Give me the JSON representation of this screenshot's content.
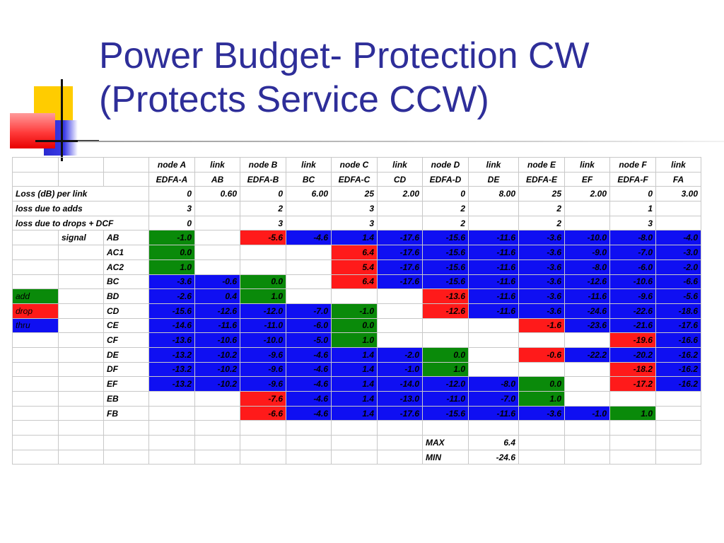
{
  "title": {
    "line1": "Power Budget- Protection CW",
    "line2": "(Protects Service CCW)"
  },
  "colors": {
    "title": "#2e2e99",
    "green": "#0a8a0a",
    "red": "#ff1a1a",
    "blue": "#0f0ff2",
    "logo_yellow": "#ffcc00",
    "logo_red": "#ff3b3b",
    "logo_blue": "#2a2ad0"
  },
  "header1": [
    "node A",
    "link",
    "node B",
    "link",
    "node C",
    "link",
    "node D",
    "link",
    "node E",
    "link",
    "node F",
    "link"
  ],
  "header2": [
    "EDFA-A",
    "AB",
    "EDFA-B",
    "BC",
    "EDFA-C",
    "CD",
    "EDFA-D",
    "DE",
    "EDFA-E",
    "EF",
    "EDFA-F",
    "FA"
  ],
  "params": [
    {
      "label": "Loss (dB) per link",
      "values": [
        "0",
        "0.60",
        "0",
        "6.00",
        "25",
        "2.00",
        "0",
        "8.00",
        "25",
        "2.00",
        "0",
        "3.00"
      ]
    },
    {
      "label": "loss due to adds",
      "values": [
        "3",
        "",
        "2",
        "",
        "3",
        "",
        "2",
        "",
        "2",
        "",
        "1",
        ""
      ]
    },
    {
      "label": "loss due to drops + DCF",
      "values": [
        "0",
        "",
        "3",
        "",
        "3",
        "",
        "2",
        "",
        "2",
        "",
        "3",
        ""
      ]
    }
  ],
  "signal_label": "signal",
  "legend": [
    {
      "label": "add",
      "color": "green"
    },
    {
      "label": "drop",
      "color": "red"
    },
    {
      "label": "thru",
      "color": "blue"
    }
  ],
  "signals": [
    {
      "label": "AB",
      "cells": [
        [
          "-1.0",
          "g"
        ],
        [
          "",
          ""
        ],
        [
          "-5.6",
          "r"
        ],
        [
          "-4.6",
          "b"
        ],
        [
          "1.4",
          "b"
        ],
        [
          "-17.6",
          "b"
        ],
        [
          "-15.6",
          "b"
        ],
        [
          "-11.6",
          "b"
        ],
        [
          "-3.6",
          "b"
        ],
        [
          "-10.0",
          "b"
        ],
        [
          "-8.0",
          "b"
        ],
        [
          "-4.0",
          "b"
        ]
      ]
    },
    {
      "label": "AC1",
      "cells": [
        [
          "0.0",
          "g"
        ],
        [
          "",
          ""
        ],
        [
          "",
          ""
        ],
        [
          "",
          ""
        ],
        [
          "6.4",
          "r"
        ],
        [
          "-17.6",
          "b"
        ],
        [
          "-15.6",
          "b"
        ],
        [
          "-11.6",
          "b"
        ],
        [
          "-3.6",
          "b"
        ],
        [
          "-9.0",
          "b"
        ],
        [
          "-7.0",
          "b"
        ],
        [
          "-3.0",
          "b"
        ]
      ]
    },
    {
      "label": "AC2",
      "cells": [
        [
          "1.0",
          "g"
        ],
        [
          "",
          ""
        ],
        [
          "",
          ""
        ],
        [
          "",
          ""
        ],
        [
          "5.4",
          "r"
        ],
        [
          "-17.6",
          "b"
        ],
        [
          "-15.6",
          "b"
        ],
        [
          "-11.6",
          "b"
        ],
        [
          "-3.6",
          "b"
        ],
        [
          "-8.0",
          "b"
        ],
        [
          "-6.0",
          "b"
        ],
        [
          "-2.0",
          "b"
        ]
      ]
    },
    {
      "label": "BC",
      "cells": [
        [
          "-3.6",
          "b"
        ],
        [
          "-0.6",
          "b"
        ],
        [
          "0.0",
          "g"
        ],
        [
          "",
          ""
        ],
        [
          "6.4",
          "r"
        ],
        [
          "-17.6",
          "b"
        ],
        [
          "-15.6",
          "b"
        ],
        [
          "-11.6",
          "b"
        ],
        [
          "-3.6",
          "b"
        ],
        [
          "-12.6",
          "b"
        ],
        [
          "-10.6",
          "b"
        ],
        [
          "-6.6",
          "b"
        ]
      ]
    },
    {
      "label": "BD",
      "cells": [
        [
          "-2.6",
          "b"
        ],
        [
          "0.4",
          "b"
        ],
        [
          "1.0",
          "g"
        ],
        [
          "",
          ""
        ],
        [
          "",
          ""
        ],
        [
          "",
          ""
        ],
        [
          "-13.6",
          "r"
        ],
        [
          "-11.6",
          "b"
        ],
        [
          "-3.6",
          "b"
        ],
        [
          "-11.6",
          "b"
        ],
        [
          "-9.6",
          "b"
        ],
        [
          "-5.6",
          "b"
        ]
      ]
    },
    {
      "label": "CD",
      "cells": [
        [
          "-15.6",
          "b"
        ],
        [
          "-12.6",
          "b"
        ],
        [
          "-12.0",
          "b"
        ],
        [
          "-7.0",
          "b"
        ],
        [
          "-1.0",
          "g"
        ],
        [
          "",
          ""
        ],
        [
          "-12.6",
          "r"
        ],
        [
          "-11.6",
          "b"
        ],
        [
          "-3.6",
          "b"
        ],
        [
          "-24.6",
          "b"
        ],
        [
          "-22.6",
          "b"
        ],
        [
          "-18.6",
          "b"
        ]
      ]
    },
    {
      "label": "CE",
      "cells": [
        [
          "-14.6",
          "b"
        ],
        [
          "-11.6",
          "b"
        ],
        [
          "-11.0",
          "b"
        ],
        [
          "-6.0",
          "b"
        ],
        [
          "0.0",
          "g"
        ],
        [
          "",
          ""
        ],
        [
          "",
          ""
        ],
        [
          "",
          ""
        ],
        [
          "-1.6",
          "r"
        ],
        [
          "-23.6",
          "b"
        ],
        [
          "-21.6",
          "b"
        ],
        [
          "-17.6",
          "b"
        ]
      ]
    },
    {
      "label": "CF",
      "cells": [
        [
          "-13.6",
          "b"
        ],
        [
          "-10.6",
          "b"
        ],
        [
          "-10.0",
          "b"
        ],
        [
          "-5.0",
          "b"
        ],
        [
          "1.0",
          "g"
        ],
        [
          "",
          ""
        ],
        [
          "",
          ""
        ],
        [
          "",
          ""
        ],
        [
          "",
          ""
        ],
        [
          "",
          ""
        ],
        [
          "-19.6",
          "r"
        ],
        [
          "-16.6",
          "b"
        ]
      ]
    },
    {
      "label": "DE",
      "cells": [
        [
          "-13.2",
          "b"
        ],
        [
          "-10.2",
          "b"
        ],
        [
          "-9.6",
          "b"
        ],
        [
          "-4.6",
          "b"
        ],
        [
          "1.4",
          "b"
        ],
        [
          "-2.0",
          "b"
        ],
        [
          "0.0",
          "g"
        ],
        [
          "",
          ""
        ],
        [
          "-0.6",
          "r"
        ],
        [
          "-22.2",
          "b"
        ],
        [
          "-20.2",
          "b"
        ],
        [
          "-16.2",
          "b"
        ]
      ]
    },
    {
      "label": "DF",
      "cells": [
        [
          "-13.2",
          "b"
        ],
        [
          "-10.2",
          "b"
        ],
        [
          "-9.6",
          "b"
        ],
        [
          "-4.6",
          "b"
        ],
        [
          "1.4",
          "b"
        ],
        [
          "-1.0",
          "b"
        ],
        [
          "1.0",
          "g"
        ],
        [
          "",
          ""
        ],
        [
          "",
          ""
        ],
        [
          "",
          ""
        ],
        [
          "-18.2",
          "r"
        ],
        [
          "-16.2",
          "b"
        ]
      ]
    },
    {
      "label": "EF",
      "cells": [
        [
          "-13.2",
          "b"
        ],
        [
          "-10.2",
          "b"
        ],
        [
          "-9.6",
          "b"
        ],
        [
          "-4.6",
          "b"
        ],
        [
          "1.4",
          "b"
        ],
        [
          "-14.0",
          "b"
        ],
        [
          "-12.0",
          "b"
        ],
        [
          "-8.0",
          "b"
        ],
        [
          "0.0",
          "g"
        ],
        [
          "",
          ""
        ],
        [
          "-17.2",
          "r"
        ],
        [
          "-16.2",
          "b"
        ]
      ]
    },
    {
      "label": "EB",
      "cells": [
        [
          "",
          ""
        ],
        [
          "",
          ""
        ],
        [
          "-7.6",
          "r"
        ],
        [
          "-4.6",
          "b"
        ],
        [
          "1.4",
          "b"
        ],
        [
          "-13.0",
          "b"
        ],
        [
          "-11.0",
          "b"
        ],
        [
          "-7.0",
          "b"
        ],
        [
          "1.0",
          "g"
        ],
        [
          "",
          ""
        ],
        [
          "",
          ""
        ],
        [
          "",
          ""
        ]
      ]
    },
    {
      "label": "FB",
      "cells": [
        [
          "",
          ""
        ],
        [
          "",
          ""
        ],
        [
          "-6.6",
          "r"
        ],
        [
          "-4.6",
          "b"
        ],
        [
          "1.4",
          "b"
        ],
        [
          "-17.6",
          "b"
        ],
        [
          "-15.6",
          "b"
        ],
        [
          "-11.6",
          "b"
        ],
        [
          "-3.6",
          "b"
        ],
        [
          "-1.0",
          "b"
        ],
        [
          "1.0",
          "g"
        ],
        [
          "",
          ""
        ]
      ]
    }
  ],
  "summary": {
    "max_label": "MAX",
    "max_value": "6.4",
    "min_label": "MIN",
    "min_value": "-24.6"
  }
}
